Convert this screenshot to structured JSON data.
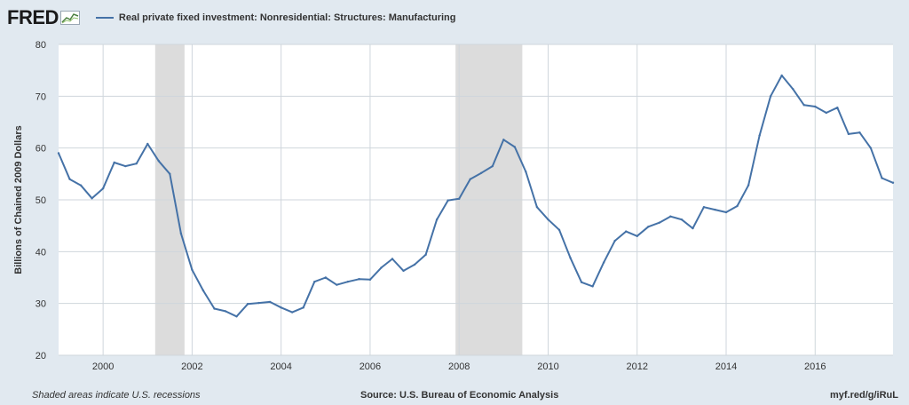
{
  "header": {
    "logo": "FRED",
    "series_label": "Real private fixed investment: Nonresidential: Structures: Manufacturing"
  },
  "colors": {
    "line": "#4572a7",
    "recession": "#dcdcdc",
    "background": "#e1e9f0",
    "plot_bg": "#ffffff",
    "grid": "#cfd6dc"
  },
  "footer": {
    "note": "Shaded areas indicate U.S. recessions",
    "source": "Source: U.S. Bureau of Economic Analysis",
    "link": "myf.red/g/iRuL"
  },
  "chart_data": {
    "type": "line",
    "ylabel": "Billions of Chained 2009 Dollars",
    "xlabel": "",
    "ylim": [
      20,
      80
    ],
    "xlim": [
      1999.0,
      2017.75
    ],
    "yticks": [
      20,
      30,
      40,
      50,
      60,
      70,
      80
    ],
    "xticks": [
      "2000",
      "2002",
      "2004",
      "2006",
      "2008",
      "2010",
      "2012",
      "2014",
      "2016"
    ],
    "grid": true,
    "recessions": [
      [
        2001.17,
        2001.83
      ],
      [
        2007.92,
        2009.42
      ]
    ],
    "series": [
      {
        "name": "Real private fixed investment: Nonresidential: Structures: Manufacturing",
        "x": [
          1999.0,
          1999.25,
          1999.5,
          1999.75,
          2000.0,
          2000.25,
          2000.5,
          2000.75,
          2001.0,
          2001.25,
          2001.5,
          2001.75,
          2002.0,
          2002.25,
          2002.5,
          2002.75,
          2003.0,
          2003.25,
          2003.5,
          2003.75,
          2004.0,
          2004.25,
          2004.5,
          2004.75,
          2005.0,
          2005.25,
          2005.5,
          2005.75,
          2006.0,
          2006.25,
          2006.5,
          2006.75,
          2007.0,
          2007.25,
          2007.5,
          2007.75,
          2008.0,
          2008.25,
          2008.5,
          2008.75,
          2009.0,
          2009.25,
          2009.5,
          2009.75,
          2010.0,
          2010.25,
          2010.5,
          2010.75,
          2011.0,
          2011.25,
          2011.5,
          2011.75,
          2012.0,
          2012.25,
          2012.5,
          2012.75,
          2013.0,
          2013.25,
          2013.5,
          2013.75,
          2014.0,
          2014.25,
          2014.5,
          2014.75,
          2015.0,
          2015.25,
          2015.5,
          2015.75,
          2016.0,
          2016.25,
          2016.5,
          2016.75,
          2017.0,
          2017.25,
          2017.5,
          2017.75
        ],
        "values": [
          59.0,
          54.0,
          52.8,
          50.3,
          52.2,
          57.2,
          56.5,
          57.0,
          60.8,
          57.5,
          55.0,
          43.5,
          36.5,
          32.5,
          29.0,
          28.5,
          27.5,
          29.9,
          30.1,
          30.3,
          29.2,
          28.3,
          29.2,
          34.2,
          35.0,
          33.6,
          34.2,
          34.7,
          34.6,
          36.9,
          38.6,
          36.3,
          37.5,
          39.4,
          46.2,
          49.9,
          50.2,
          54.0,
          55.2,
          56.5,
          61.6,
          60.2,
          55.4,
          48.6,
          46.2,
          44.2,
          38.8,
          34.1,
          33.3,
          37.9,
          42.1,
          43.9,
          43.0,
          44.8,
          45.6,
          46.8,
          46.2,
          44.5,
          48.6,
          48.1,
          47.6,
          48.8,
          52.8,
          62.4,
          70.0,
          74.0,
          71.4,
          68.3,
          68.0,
          66.8,
          67.8,
          62.7,
          63.0,
          60.0,
          54.2,
          53.3
        ]
      }
    ]
  }
}
